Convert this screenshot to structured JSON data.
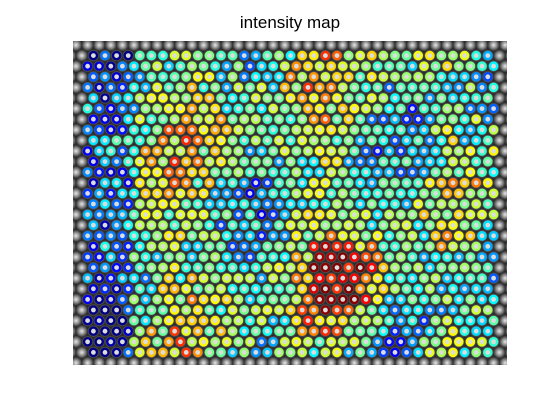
{
  "title": "intensity map"
}
